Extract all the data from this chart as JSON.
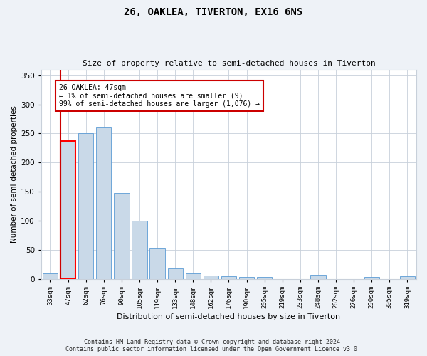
{
  "title": "26, OAKLEA, TIVERTON, EX16 6NS",
  "subtitle": "Size of property relative to semi-detached houses in Tiverton",
  "xlabel": "Distribution of semi-detached houses by size in Tiverton",
  "ylabel": "Number of semi-detached properties",
  "categories": [
    "33sqm",
    "47sqm",
    "62sqm",
    "76sqm",
    "90sqm",
    "105sqm",
    "119sqm",
    "133sqm",
    "148sqm",
    "162sqm",
    "176sqm",
    "190sqm",
    "205sqm",
    "219sqm",
    "233sqm",
    "248sqm",
    "262sqm",
    "276sqm",
    "290sqm",
    "305sqm",
    "319sqm"
  ],
  "values": [
    9,
    237,
    250,
    260,
    148,
    100,
    52,
    18,
    10,
    6,
    5,
    4,
    4,
    0,
    0,
    7,
    0,
    0,
    4,
    0,
    5
  ],
  "highlight_index": 1,
  "bar_color": "#c9d9e8",
  "bar_edge_color": "#5b9bd5",
  "highlight_bar_color": "#c9d9e8",
  "highlight_bar_edge_color": "#ff0000",
  "highlight_line_color": "#cc0000",
  "annotation_text": "26 OAKLEA: 47sqm\n← 1% of semi-detached houses are smaller (9)\n99% of semi-detached houses are larger (1,076) →",
  "annotation_box_color": "#ffffff",
  "annotation_box_edge_color": "#cc0000",
  "ylim": [
    0,
    360
  ],
  "yticks": [
    0,
    50,
    100,
    150,
    200,
    250,
    300,
    350
  ],
  "footnote": "Contains HM Land Registry data © Crown copyright and database right 2024.\nContains public sector information licensed under the Open Government Licence v3.0.",
  "background_color": "#eef2f7",
  "plot_background_color": "#ffffff",
  "grid_color": "#c8d0da"
}
